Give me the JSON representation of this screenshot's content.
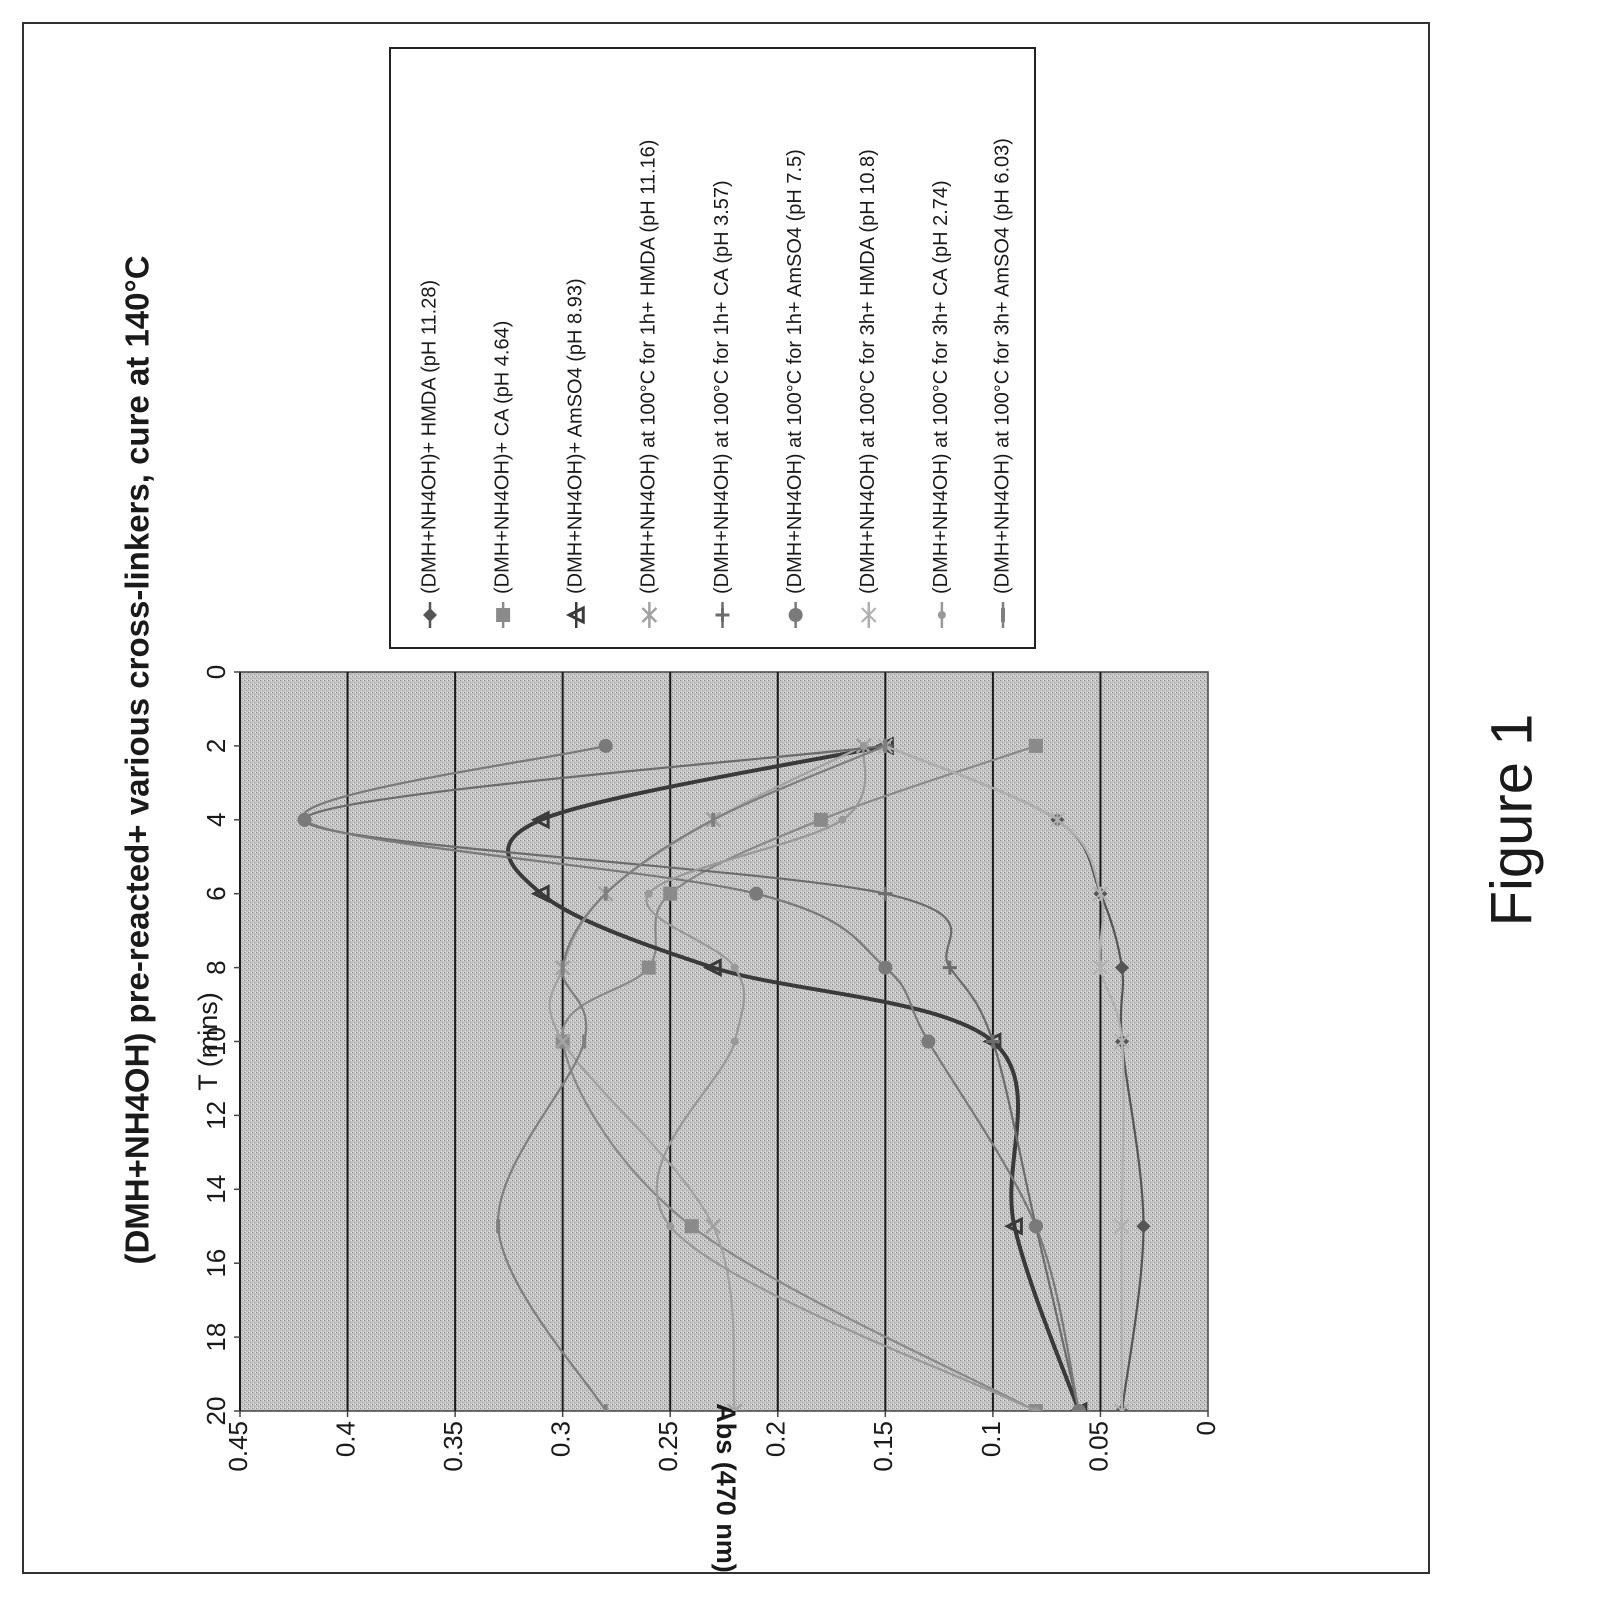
{
  "chart_data": {
    "type": "line",
    "title": "(DMH+NH4OH) pre-reacted+ various cross-linkers, cure at 140°C",
    "xlabel": "T (mins)",
    "ylabel": "Abs (470 nm)",
    "xlim": [
      0,
      20
    ],
    "ylim": [
      0,
      0.45
    ],
    "x_ticks": [
      "0",
      "2",
      "4",
      "6",
      "8",
      "10",
      "12",
      "14",
      "16",
      "18",
      "20"
    ],
    "y_ticks": [
      "0",
      "0.05",
      "0.1",
      "0.15",
      "0.2",
      "0.25",
      "0.3",
      "0.35",
      "0.4",
      "0.45"
    ],
    "grid": true,
    "legend_position": "right",
    "orientation": "rotated 90 degrees counter-clockwise",
    "x": [
      2,
      4,
      6,
      8,
      10,
      15,
      20
    ],
    "series": [
      {
        "name": "(DMH+NH4OH)+ HMDA (pH 11.28)",
        "values": [
          0.15,
          0.07,
          0.05,
          0.04,
          0.04,
          0.03,
          0.04
        ]
      },
      {
        "name": "(DMH+NH4OH)+ CA (pH 4.64)",
        "values": [
          0.08,
          0.18,
          0.25,
          0.26,
          0.3,
          0.24,
          0.08
        ]
      },
      {
        "name": "(DMH+NH4OH)+ AmSO4 (pH 8.93)",
        "values": [
          0.15,
          0.31,
          0.31,
          0.23,
          0.1,
          0.09,
          0.06
        ]
      },
      {
        "name": "(DMH+NH4OH) at 100°C for 1h+ HMDA (pH 11.16)",
        "values": [
          0.16,
          0.23,
          0.28,
          0.3,
          0.3,
          0.23,
          0.22
        ]
      },
      {
        "name": "(DMH+NH4OH) at 100°C for 1h+ CA (pH 3.57)",
        "values": [
          0.15,
          0.42,
          0.15,
          0.12,
          0.1,
          0.08,
          0.06
        ]
      },
      {
        "name": "(DMH+NH4OH) at 100°C for 1h+ AmSO4 (pH 7.5)",
        "values": [
          0.28,
          0.42,
          0.21,
          0.15,
          0.13,
          0.08,
          0.06
        ]
      },
      {
        "name": "(DMH+NH4OH) at 100°C for 3h+ HMDA (pH 10.8)",
        "values": [
          0.15,
          0.07,
          0.05,
          0.05,
          0.04,
          0.04,
          0.04
        ]
      },
      {
        "name": "(DMH+NH4OH) at 100°C for 3h+ CA (pH 2.74)",
        "values": [
          0.16,
          0.17,
          0.26,
          0.22,
          0.22,
          0.25,
          0.08
        ]
      },
      {
        "name": "(DMH+NH4OH) at 100°C for 3h+ AmSO4 (pH 6.03)",
        "values": [
          0.15,
          0.23,
          0.28,
          0.3,
          0.29,
          0.33,
          0.28
        ]
      }
    ],
    "colors": {
      "plot_bg": "#c3c3c3",
      "grid": "#1a1a1a",
      "text": "#1a1a1a",
      "series": [
        "#555555",
        "#8a8a8a",
        "#3a3a3a",
        "#a2a2a2",
        "#6c6c6c",
        "#7a7a7a",
        "#b0b0b0",
        "#999999",
        "#7f7f7f"
      ]
    },
    "markers": [
      "diamond",
      "square",
      "triangle",
      "x",
      "plus",
      "circle",
      "cross",
      "dot",
      "dash"
    ]
  },
  "figure": {
    "caption": "Figure 1"
  }
}
